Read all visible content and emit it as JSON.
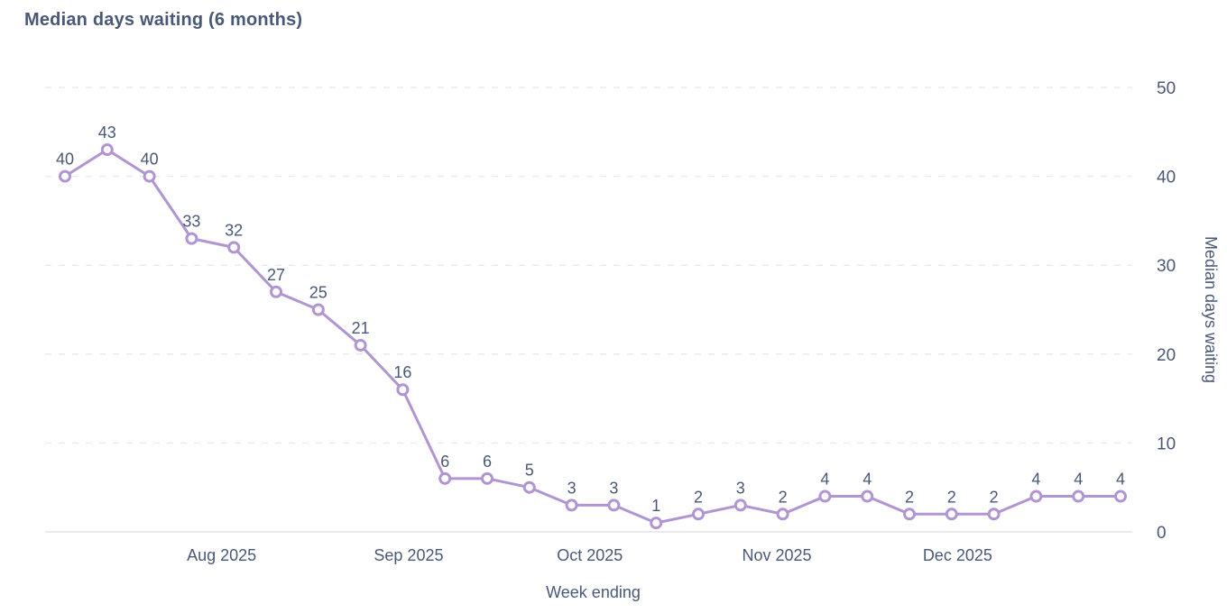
{
  "chart_data": {
    "type": "line",
    "title": "Median days waiting (6 months)",
    "xlabel": "Week ending",
    "ylabel": "Median days waiting",
    "series": [
      {
        "name": "Median days waiting",
        "values": [
          40,
          43,
          40,
          33,
          32,
          27,
          25,
          21,
          16,
          6,
          6,
          5,
          3,
          3,
          1,
          2,
          3,
          2,
          4,
          4,
          2,
          2,
          2,
          4,
          4,
          4
        ]
      }
    ],
    "point_labels": [
      "40",
      "43",
      "40",
      "33",
      "32",
      "27",
      "25",
      "21",
      "16",
      "6",
      "6",
      "5",
      "3",
      "3",
      "1",
      "2",
      "3",
      "2",
      "4",
      "4",
      "2",
      "2",
      "2",
      "4",
      "4",
      "4"
    ],
    "x_ticks": [
      {
        "label": "Aug 2025",
        "pos": 3.71
      },
      {
        "label": "Sep 2025",
        "pos": 8.14
      },
      {
        "label": "Oct 2025",
        "pos": 12.43
      },
      {
        "label": "Nov 2025",
        "pos": 16.86
      },
      {
        "label": "Dec 2025",
        "pos": 21.14
      }
    ],
    "y_ticks": [
      0,
      10,
      20,
      30,
      40,
      50
    ],
    "ylim": [
      0,
      50
    ],
    "grid": "horizontal-dashed",
    "legend": "none",
    "y_axis_side": "right",
    "colors": {
      "line": "#b195d2",
      "marker_fill": "#ffffff",
      "text": "#4a5878",
      "grid": "#ebebee",
      "baseline": "#e3e3e7"
    }
  }
}
